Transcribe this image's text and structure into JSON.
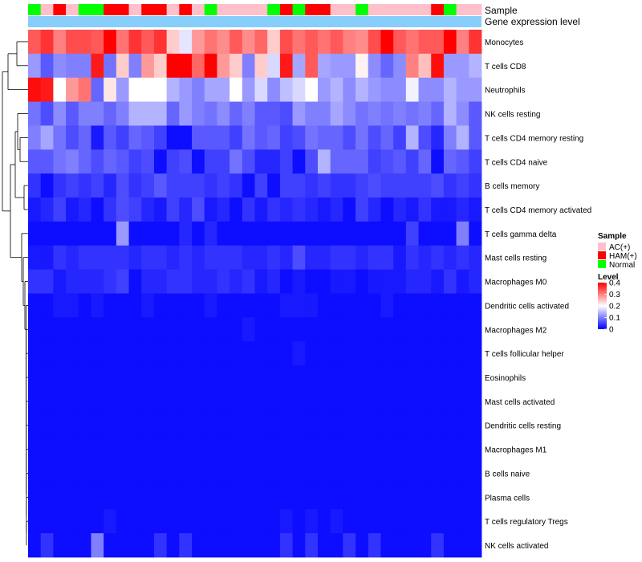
{
  "chart_data": {
    "type": "heatmap",
    "annotation_labels": {
      "sample": "Sample",
      "gene_expression": "Gene expression level"
    },
    "row_labels": [
      "Monocytes",
      "T cells CD8",
      "Neutrophils",
      "NK cells resting",
      "T cells CD4 memory resting",
      "T cells CD4 naive",
      "B cells memory",
      "T cells CD4 memory activated",
      "T cells gamma delta",
      "Mast cells resting",
      "Macrophages M0",
      "Dendritic cells activated",
      "Macrophages M2",
      "T cells follicular helper",
      "Eosinophils",
      "Mast cells activated",
      "Dendritic cells resting",
      "Macrophages M1",
      "B cells naive",
      "Plasma cells",
      "T cells regulatory  Tregs",
      "NK cells activated"
    ],
    "sample_groups": [
      "Normal",
      "AC(+)",
      "HAM(+)",
      "AC(+)",
      "Normal",
      "Normal",
      "HAM(+)",
      "HAM(+)",
      "AC(+)",
      "HAM(+)",
      "HAM(+)",
      "AC(+)",
      "HAM(+)",
      "AC(+)",
      "Normal",
      "AC(+)",
      "AC(+)",
      "AC(+)",
      "AC(+)",
      "Normal",
      "HAM(+)",
      "Normal",
      "HAM(+)",
      "HAM(+)",
      "AC(+)",
      "AC(+)",
      "Normal",
      "AC(+)",
      "AC(+)",
      "AC(+)",
      "AC(+)",
      "AC(+)",
      "HAM(+)",
      "Normal",
      "AC(+)",
      "AC(+)"
    ],
    "values": [
      [
        0.33,
        0.36,
        0.3,
        0.34,
        0.34,
        0.33,
        0.4,
        0.31,
        0.36,
        0.33,
        0.36,
        0.24,
        0.18,
        0.28,
        0.31,
        0.29,
        0.33,
        0.29,
        0.32,
        0.24,
        0.34,
        0.31,
        0.33,
        0.31,
        0.33,
        0.3,
        0.29,
        0.34,
        0.4,
        0.33,
        0.31,
        0.33,
        0.33,
        0.4,
        0.3,
        0.36
      ],
      [
        0.12,
        0.07,
        0.11,
        0.1,
        0.1,
        0.38,
        0.09,
        0.24,
        0.1,
        0.28,
        0.24,
        0.4,
        0.41,
        0.32,
        0.4,
        0.28,
        0.24,
        0.1,
        0.24,
        0.17,
        0.38,
        0.13,
        0.33,
        0.13,
        0.12,
        0.12,
        0.21,
        0.11,
        0.08,
        0.11,
        0.3,
        0.25,
        0.39,
        0.12,
        0.12,
        0.14
      ],
      [
        0.39,
        0.38,
        0.2,
        0.28,
        0.31,
        0.08,
        0.22,
        0.12,
        0.2,
        0.2,
        0.2,
        0.14,
        0.12,
        0.1,
        0.13,
        0.13,
        0.2,
        0.12,
        0.17,
        0.11,
        0.15,
        0.17,
        0.2,
        0.12,
        0.14,
        0.11,
        0.14,
        0.12,
        0.11,
        0.11,
        0.19,
        0.11,
        0.11,
        0.14,
        0.12,
        0.12
      ],
      [
        0.09,
        0.06,
        0.11,
        0.07,
        0.1,
        0.1,
        0.08,
        0.1,
        0.14,
        0.14,
        0.14,
        0.08,
        0.12,
        0.1,
        0.09,
        0.11,
        0.08,
        0.1,
        0.07,
        0.07,
        0.06,
        0.12,
        0.1,
        0.1,
        0.13,
        0.11,
        0.09,
        0.1,
        0.09,
        0.1,
        0.09,
        0.1,
        0.08,
        0.14,
        0.11,
        0.07
      ],
      [
        0.1,
        0.13,
        0.09,
        0.06,
        0.08,
        0.02,
        0.07,
        0.05,
        0.08,
        0.07,
        0.05,
        0.01,
        0.01,
        0.07,
        0.07,
        0.07,
        0.05,
        0.09,
        0.07,
        0.08,
        0.05,
        0.06,
        0.09,
        0.08,
        0.08,
        0.06,
        0.09,
        0.06,
        0.08,
        0.05,
        0.14,
        0.06,
        0.03,
        0.1,
        0.14,
        0.07
      ],
      [
        0.07,
        0.07,
        0.09,
        0.1,
        0.08,
        0.06,
        0.08,
        0.07,
        0.05,
        0.06,
        0.01,
        0.05,
        0.06,
        0.01,
        0.05,
        0.05,
        0.09,
        0.06,
        0.03,
        0.03,
        0.05,
        0.01,
        0.06,
        0.14,
        0.08,
        0.08,
        0.08,
        0.05,
        0.06,
        0.07,
        0.05,
        0.08,
        0.01,
        0.08,
        0.07,
        0.05
      ],
      [
        0.04,
        0.01,
        0.04,
        0.05,
        0.04,
        0.05,
        0.03,
        0.06,
        0.04,
        0.05,
        0.07,
        0.05,
        0.05,
        0.05,
        0.04,
        0.05,
        0.04,
        0.01,
        0.05,
        0.01,
        0.05,
        0.05,
        0.04,
        0.05,
        0.04,
        0.04,
        0.05,
        0.06,
        0.05,
        0.05,
        0.05,
        0.05,
        0.06,
        0.04,
        0.05,
        0.04
      ],
      [
        0.02,
        0.03,
        0.05,
        0.02,
        0.03,
        0.01,
        0.04,
        0.06,
        0.05,
        0.03,
        0.02,
        0.05,
        0.03,
        0.06,
        0.02,
        0.03,
        0.01,
        0.04,
        0.02,
        0.04,
        0.03,
        0.04,
        0.03,
        0.02,
        0.03,
        0.01,
        0.05,
        0.03,
        0.01,
        0.03,
        0.02,
        0.04,
        0.02,
        0.02,
        0.03,
        0.02
      ],
      [
        0.01,
        0.01,
        0.01,
        0.01,
        0.01,
        0.01,
        0.01,
        0.12,
        0.01,
        0.01,
        0.01,
        0.01,
        0.03,
        0.01,
        0.03,
        0.01,
        0.01,
        0.01,
        0.01,
        0.01,
        0.01,
        0.01,
        0.01,
        0.01,
        0.01,
        0.01,
        0.01,
        0.01,
        0.01,
        0.01,
        0.05,
        0.01,
        0.01,
        0.01,
        0.1,
        0.01
      ],
      [
        0.02,
        0.02,
        0.04,
        0.03,
        0.04,
        0.04,
        0.04,
        0.04,
        0.03,
        0.04,
        0.04,
        0.03,
        0.04,
        0.03,
        0.04,
        0.04,
        0.04,
        0.03,
        0.03,
        0.04,
        0.03,
        0.06,
        0.03,
        0.03,
        0.04,
        0.04,
        0.03,
        0.04,
        0.04,
        0.02,
        0.04,
        0.03,
        0.04,
        0.03,
        0.04,
        0.03
      ],
      [
        0.04,
        0.04,
        0.02,
        0.03,
        0.03,
        0.03,
        0.04,
        0.05,
        0.01,
        0.03,
        0.03,
        0.04,
        0.04,
        0.03,
        0.03,
        0.04,
        0.03,
        0.04,
        0.02,
        0.03,
        0.01,
        0.02,
        0.01,
        0.01,
        0.02,
        0.02,
        0.01,
        0.02,
        0.02,
        0.02,
        0.03,
        0.03,
        0.02,
        0.04,
        0.02,
        0.03
      ],
      [
        0.01,
        0.01,
        0.02,
        0.02,
        0.01,
        0.02,
        0.01,
        0.01,
        0.01,
        0.02,
        0.01,
        0.01,
        0.01,
        0.01,
        0.02,
        0.01,
        0.01,
        0.01,
        0.01,
        0.01,
        0.02,
        0.02,
        0.02,
        0.01,
        0.01,
        0.01,
        0.01,
        0.01,
        0.02,
        0.01,
        0.01,
        0.01,
        0.01,
        0.01,
        0.01,
        0.01
      ],
      [
        0.01,
        0.01,
        0.01,
        0.01,
        0.01,
        0.01,
        0.01,
        0.01,
        0.01,
        0.01,
        0.01,
        0.01,
        0.01,
        0.01,
        0.01,
        0.01,
        0.01,
        0.02,
        0.01,
        0.01,
        0.01,
        0.01,
        0.01,
        0.01,
        0.01,
        0.01,
        0.01,
        0.01,
        0.01,
        0.01,
        0.01,
        0.01,
        0.01,
        0.01,
        0.01,
        0.01
      ],
      [
        0.01,
        0.01,
        0.01,
        0.01,
        0.01,
        0.01,
        0.01,
        0.01,
        0.01,
        0.01,
        0.01,
        0.01,
        0.01,
        0.01,
        0.01,
        0.01,
        0.01,
        0.01,
        0.01,
        0.01,
        0.01,
        0.02,
        0.01,
        0.01,
        0.01,
        0.01,
        0.01,
        0.01,
        0.01,
        0.01,
        0.01,
        0.01,
        0.01,
        0.01,
        0.01,
        0.01
      ],
      [
        0.01,
        0.01,
        0.01,
        0.01,
        0.01,
        0.01,
        0.01,
        0.01,
        0.01,
        0.01,
        0.01,
        0.01,
        0.01,
        0.01,
        0.01,
        0.01,
        0.01,
        0.01,
        0.01,
        0.01,
        0.01,
        0.01,
        0.01,
        0.01,
        0.01,
        0.01,
        0.01,
        0.01,
        0.01,
        0.01,
        0.01,
        0.01,
        0.01,
        0.01,
        0.01,
        0.01
      ],
      [
        0.01,
        0.01,
        0.01,
        0.01,
        0.01,
        0.01,
        0.01,
        0.01,
        0.01,
        0.01,
        0.01,
        0.01,
        0.01,
        0.01,
        0.01,
        0.01,
        0.01,
        0.01,
        0.01,
        0.01,
        0.01,
        0.01,
        0.01,
        0.01,
        0.01,
        0.01,
        0.01,
        0.01,
        0.01,
        0.01,
        0.01,
        0.01,
        0.01,
        0.01,
        0.01,
        0.01
      ],
      [
        0.01,
        0.01,
        0.01,
        0.01,
        0.01,
        0.01,
        0.01,
        0.01,
        0.01,
        0.01,
        0.01,
        0.01,
        0.01,
        0.01,
        0.01,
        0.01,
        0.01,
        0.01,
        0.01,
        0.01,
        0.01,
        0.01,
        0.01,
        0.01,
        0.01,
        0.01,
        0.01,
        0.01,
        0.01,
        0.01,
        0.01,
        0.01,
        0.01,
        0.01,
        0.01,
        0.01
      ],
      [
        0.01,
        0.01,
        0.01,
        0.01,
        0.01,
        0.01,
        0.01,
        0.01,
        0.01,
        0.01,
        0.01,
        0.01,
        0.01,
        0.01,
        0.01,
        0.01,
        0.01,
        0.01,
        0.01,
        0.01,
        0.01,
        0.01,
        0.01,
        0.01,
        0.01,
        0.01,
        0.01,
        0.01,
        0.01,
        0.01,
        0.01,
        0.01,
        0.01,
        0.01,
        0.01,
        0.01
      ],
      [
        0.01,
        0.01,
        0.01,
        0.01,
        0.01,
        0.01,
        0.01,
        0.01,
        0.01,
        0.01,
        0.01,
        0.01,
        0.01,
        0.01,
        0.01,
        0.01,
        0.01,
        0.01,
        0.01,
        0.01,
        0.01,
        0.01,
        0.01,
        0.01,
        0.01,
        0.01,
        0.01,
        0.01,
        0.01,
        0.01,
        0.01,
        0.01,
        0.01,
        0.01,
        0.01,
        0.01
      ],
      [
        0.01,
        0.01,
        0.01,
        0.01,
        0.01,
        0.01,
        0.01,
        0.01,
        0.01,
        0.01,
        0.01,
        0.01,
        0.01,
        0.01,
        0.01,
        0.01,
        0.01,
        0.01,
        0.01,
        0.01,
        0.01,
        0.01,
        0.01,
        0.01,
        0.01,
        0.01,
        0.01,
        0.01,
        0.01,
        0.01,
        0.01,
        0.01,
        0.01,
        0.01,
        0.01,
        0.01
      ],
      [
        0.01,
        0.01,
        0.01,
        0.01,
        0.01,
        0.01,
        0.02,
        0.01,
        0.01,
        0.01,
        0.01,
        0.01,
        0.01,
        0.01,
        0.01,
        0.01,
        0.01,
        0.01,
        0.01,
        0.01,
        0.02,
        0.01,
        0.02,
        0.01,
        0.02,
        0.01,
        0.01,
        0.01,
        0.01,
        0.01,
        0.01,
        0.01,
        0.01,
        0.01,
        0.01,
        0.01
      ],
      [
        0.01,
        0.04,
        0.01,
        0.01,
        0.01,
        0.1,
        0.01,
        0.01,
        0.01,
        0.01,
        0.04,
        0.01,
        0.04,
        0.01,
        0.01,
        0.01,
        0.01,
        0.01,
        0.01,
        0.01,
        0.04,
        0.01,
        0.04,
        0.01,
        0.01,
        0.04,
        0.01,
        0.04,
        0.01,
        0.01,
        0.01,
        0.01,
        0.04,
        0.01,
        0.01,
        0.01
      ]
    ],
    "color_scale": {
      "low": "#0000ff",
      "mid": "#ffffff",
      "high": "#ff0000",
      "min": 0,
      "max": 0.4
    },
    "legend": {
      "sample_title": "Sample",
      "sample_items": [
        {
          "label": "AC(+)",
          "color": "#ffc0cb"
        },
        {
          "label": "HAM(+)",
          "color": "#ff0000"
        },
        {
          "label": "Normal",
          "color": "#00ff00"
        }
      ],
      "level_title": "Level",
      "level_ticks": [
        0.4,
        0.3,
        0.2,
        0.1,
        0
      ],
      "level_tick_labels": [
        "0.4",
        "0.3",
        "0.2",
        "0.1",
        "0"
      ]
    },
    "annotation_bar_color": "#87cefa"
  }
}
